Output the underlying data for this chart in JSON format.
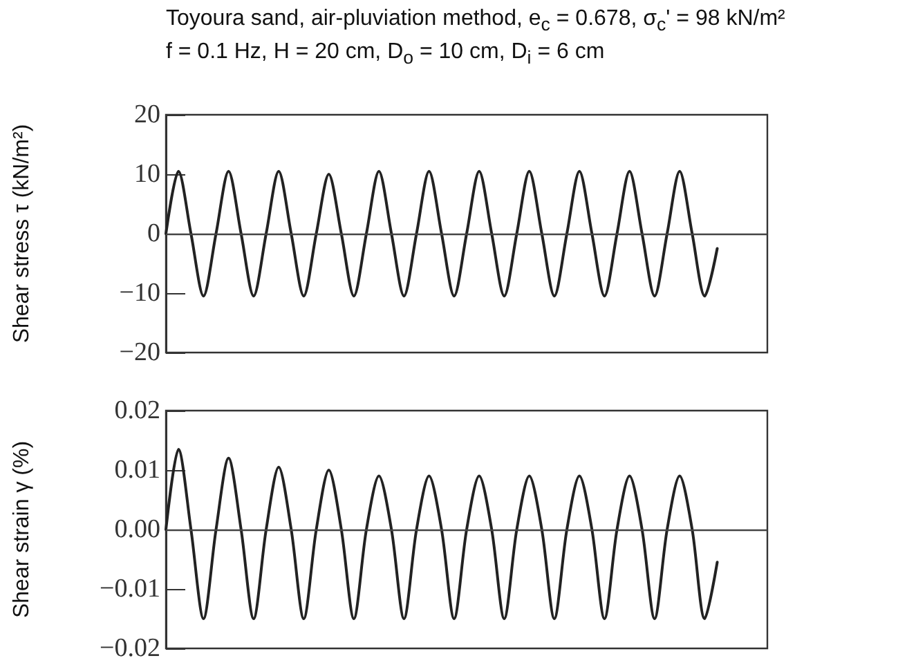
{
  "chart_data": [
    {
      "type": "line",
      "title": "Toyoura sand, air-pluviation method, e$_{c}$ = 0.678, σ$_{c}$' = 98 kN/m²",
      "subtitle": "f = 0.1 Hz, H = 20 cm, D$_{o}$ = 10 cm, D$_{i}$ = 6 cm",
      "ylabel": "Shear stress τ (kN/m²)",
      "categories": [
        null,
        null,
        null,
        null,
        null,
        null,
        null,
        null,
        null,
        null,
        null,
        null,
        null,
        null,
        null,
        null,
        null,
        null,
        null,
        null,
        null,
        null,
        null,
        null,
        null,
        null,
        null,
        null,
        null,
        null,
        null,
        null,
        null,
        null,
        null,
        null,
        null,
        null,
        null,
        null,
        null,
        null,
        null,
        null,
        null,
        null,
        null,
        null,
        null
      ],
      "series": [
        {
          "color": "#222222",
          "values": [
            0,
            10.5,
            0,
            -10.5,
            0,
            10.5,
            0,
            -10.5,
            0,
            10.5,
            0,
            -10.5,
            0,
            10,
            0,
            -10.5,
            0,
            10.5,
            0,
            -10.5,
            0,
            10.5,
            0,
            -10.5,
            0,
            10.5,
            0,
            -10.5,
            0,
            10.5,
            0,
            -10.5,
            0,
            10.5,
            0,
            -10.5,
            0,
            10.5,
            0,
            -10.5,
            0,
            10.5,
            0,
            -10.5,
            -2.5,
            null,
            null,
            null,
            null
          ]
        }
      ],
      "ylim": [
        -20,
        20
      ],
      "yticks": [
        {
          "value": -20,
          "label": "−20"
        },
        {
          "value": -10,
          "label": "−10"
        },
        0,
        10,
        20
      ],
      "ref_lines": [
        {
          "axis": "y",
          "value": 0,
          "color": "#444444"
        }
      ],
      "tick_labels": "y",
      "grid": false,
      "line_style": "solid"
    },
    {
      "type": "line",
      "ylabel": "Shear strain γ (%)",
      "categories": [
        null,
        null,
        null,
        null,
        null,
        null,
        null,
        null,
        null,
        null,
        null,
        null,
        null,
        null,
        null,
        null,
        null,
        null,
        null,
        null,
        null,
        null,
        null,
        null,
        null,
        null,
        null,
        null,
        null,
        null,
        null,
        null,
        null,
        null,
        null,
        null,
        null,
        null,
        null,
        null,
        null,
        null,
        null,
        null,
        null,
        null,
        null,
        null,
        null
      ],
      "series": [
        {
          "color": "#222222",
          "values": [
            0,
            0.0135,
            0,
            -0.015,
            0,
            0.012,
            0,
            -0.015,
            0,
            0.0105,
            0,
            -0.015,
            0,
            0.01,
            0,
            -0.015,
            0,
            0.009,
            0,
            -0.015,
            0,
            0.009,
            0,
            -0.015,
            0,
            0.009,
            0,
            -0.015,
            0,
            0.009,
            0,
            -0.015,
            0,
            0.009,
            0,
            -0.015,
            0,
            0.009,
            0,
            -0.015,
            0,
            0.009,
            0,
            -0.015,
            -0.0055,
            null,
            null,
            null,
            null
          ]
        }
      ],
      "ylim": [
        -0.02,
        0.02
      ],
      "yticks": [
        {
          "value": -0.02,
          "label": "−0.02"
        },
        {
          "value": -0.01,
          "label": "−0.01"
        },
        {
          "value": 0,
          "label": "0.00"
        },
        {
          "value": 0.01,
          "label": "0.01"
        },
        {
          "value": 0.02,
          "label": "0.02"
        }
      ],
      "ref_lines": [
        {
          "axis": "y",
          "value": 0,
          "color": "#444444"
        }
      ],
      "tick_labels": "y",
      "grid": false,
      "line_style": "solid"
    }
  ]
}
